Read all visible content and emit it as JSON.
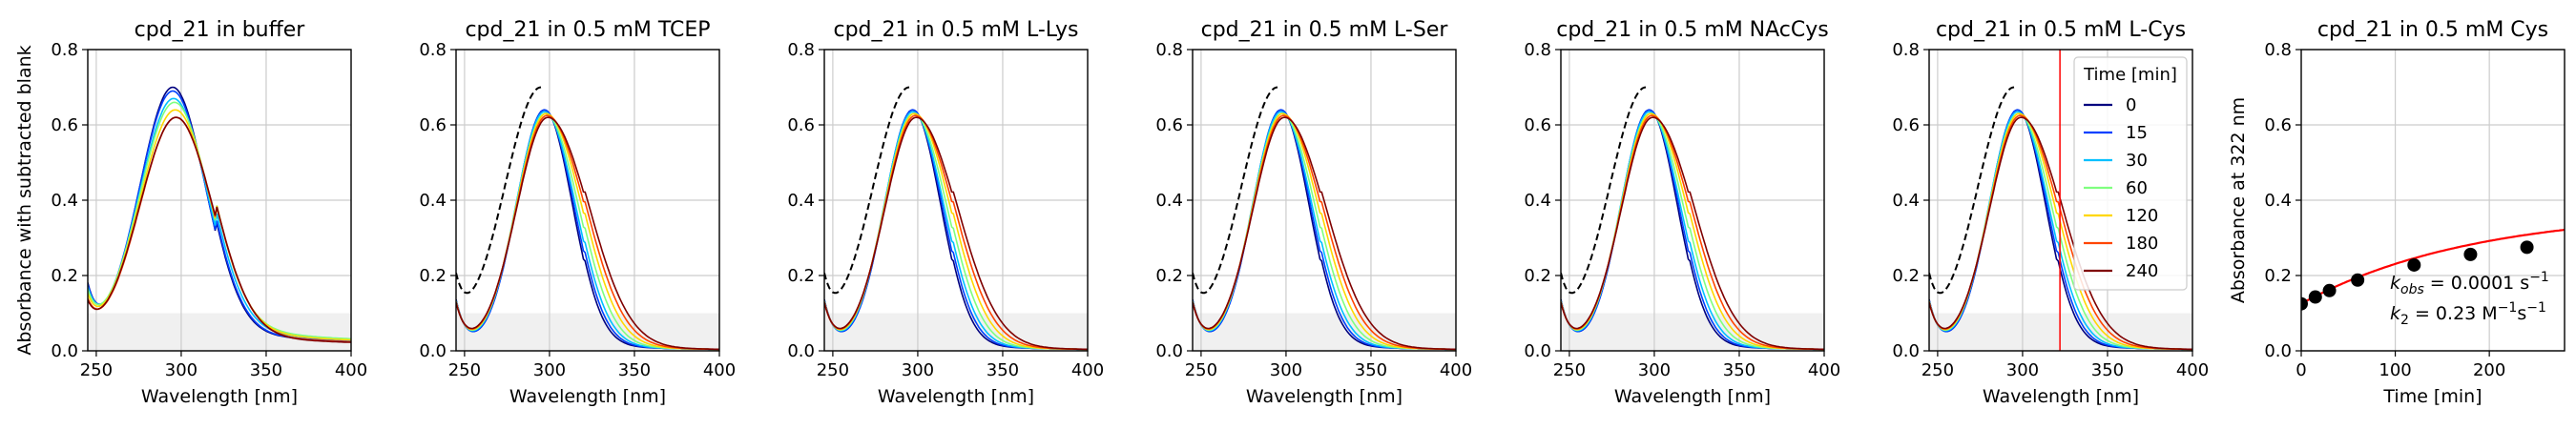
{
  "colors": {
    "series": [
      "#00007f",
      "#0040ff",
      "#00c0ff",
      "#7fff7f",
      "#ffd700",
      "#ff4500",
      "#7f0000"
    ],
    "reference": "#000000",
    "fit": "#ff0000",
    "marker": "#000000",
    "blank_region": "#f0f0f0",
    "grid": "#cccccc",
    "cursor_line": "#ff0000"
  },
  "chart_data": [
    {
      "type": "line",
      "title": "cpd_21 in buffer",
      "xlabel": "Wavelength [nm]",
      "ylabel": "Absorbance with subtracted blank",
      "xlim": [
        245,
        400
      ],
      "ylim": [
        0,
        0.8
      ],
      "xticks": [
        "250",
        "300",
        "350",
        "400"
      ],
      "yticks": [
        "0.0",
        "0.2",
        "0.4",
        "0.6",
        "0.8"
      ],
      "grid": true,
      "blank_band": [
        0,
        0.1
      ],
      "series": [
        {
          "peak": 0.7,
          "center": 295,
          "width": 19.5,
          "shift": 0,
          "min": 0.135,
          "base": 0.021,
          "tail": 0.031
        },
        {
          "peak": 0.69,
          "center": 295,
          "width": 19.8,
          "shift": 0,
          "min": 0.13,
          "base": 0.02,
          "tail": 0.034
        },
        {
          "peak": 0.67,
          "center": 295.5,
          "width": 20.2,
          "shift": 0,
          "min": 0.12,
          "base": 0.022,
          "tail": 0.04
        },
        {
          "peak": 0.66,
          "center": 296,
          "width": 20.6,
          "shift": 0,
          "min": 0.11,
          "base": 0.024,
          "tail": 0.046
        },
        {
          "peak": 0.64,
          "center": 296.5,
          "width": 21.0,
          "shift": 0,
          "min": 0.1,
          "base": 0.022,
          "tail": 0.04
        },
        {
          "peak": 0.62,
          "center": 297,
          "width": 21.4,
          "shift": 0,
          "min": 0.09,
          "base": 0.018,
          "tail": 0.034
        },
        {
          "peak": 0.62,
          "center": 297,
          "width": 21.6,
          "shift": 0,
          "min": 0.085,
          "base": 0.017,
          "tail": 0.032
        }
      ]
    },
    {
      "type": "line",
      "title": "cpd_21 in 0.5 mM TCEP",
      "xlabel": "Wavelength [nm]",
      "xlim": [
        245,
        400
      ],
      "ylim": [
        0,
        0.8
      ],
      "xticks": [
        "250",
        "300",
        "350",
        "400"
      ],
      "yticks": [
        "0.0",
        "0.2",
        "0.4",
        "0.6",
        "0.8"
      ],
      "grid": true,
      "blank_band": [
        0,
        0.1
      ],
      "reference": {
        "peak": 0.7,
        "center": 295,
        "width": 21.5,
        "min": 0.145,
        "base": 0.016,
        "tail": 0.052
      },
      "series": [
        {
          "peak": 0.64,
          "center": 297,
          "width": 16.5,
          "shift": 0,
          "min": 0.13,
          "base": 0.002,
          "tail": 0.012
        },
        {
          "peak": 0.64,
          "center": 297,
          "width": 16.5,
          "shift": 0.8,
          "min": 0.128,
          "base": 0.002,
          "tail": 0.012
        },
        {
          "peak": 0.635,
          "center": 297,
          "width": 16.8,
          "shift": 1.6,
          "min": 0.126,
          "base": 0.002,
          "tail": 0.012
        },
        {
          "peak": 0.63,
          "center": 297.5,
          "width": 17.2,
          "shift": 2.5,
          "min": 0.124,
          "base": 0.002,
          "tail": 0.012
        },
        {
          "peak": 0.63,
          "center": 298,
          "width": 17.6,
          "shift": 3.5,
          "min": 0.122,
          "base": 0.002,
          "tail": 0.012
        },
        {
          "peak": 0.625,
          "center": 298.5,
          "width": 18.0,
          "shift": 4.5,
          "min": 0.12,
          "base": 0.002,
          "tail": 0.012
        },
        {
          "peak": 0.62,
          "center": 299,
          "width": 18.4,
          "shift": 5.5,
          "min": 0.118,
          "base": 0.002,
          "tail": 0.012
        }
      ]
    },
    {
      "type": "line",
      "title": "cpd_21 in 0.5 mM L-Lys",
      "xlabel": "Wavelength [nm]",
      "xlim": [
        245,
        400
      ],
      "ylim": [
        0,
        0.8
      ],
      "xticks": [
        "250",
        "300",
        "350",
        "400"
      ],
      "yticks": [
        "0.0",
        "0.2",
        "0.4",
        "0.6",
        "0.8"
      ],
      "grid": true,
      "blank_band": [
        0,
        0.1
      ],
      "reference": {
        "peak": 0.7,
        "center": 295,
        "width": 21.5,
        "min": 0.145,
        "base": 0.016,
        "tail": 0.052
      },
      "series": [
        {
          "peak": 0.64,
          "center": 297,
          "width": 16.5,
          "shift": 0,
          "min": 0.13,
          "base": 0.002,
          "tail": 0.012
        },
        {
          "peak": 0.64,
          "center": 297,
          "width": 16.5,
          "shift": 0.8,
          "min": 0.128,
          "base": 0.002,
          "tail": 0.012
        },
        {
          "peak": 0.635,
          "center": 297,
          "width": 16.8,
          "shift": 1.6,
          "min": 0.126,
          "base": 0.002,
          "tail": 0.012
        },
        {
          "peak": 0.63,
          "center": 297.5,
          "width": 17.2,
          "shift": 2.5,
          "min": 0.124,
          "base": 0.002,
          "tail": 0.012
        },
        {
          "peak": 0.63,
          "center": 298,
          "width": 17.6,
          "shift": 3.5,
          "min": 0.122,
          "base": 0.002,
          "tail": 0.012
        },
        {
          "peak": 0.625,
          "center": 298.5,
          "width": 18.0,
          "shift": 4.5,
          "min": 0.12,
          "base": 0.002,
          "tail": 0.012
        },
        {
          "peak": 0.62,
          "center": 299,
          "width": 18.4,
          "shift": 5.5,
          "min": 0.118,
          "base": 0.002,
          "tail": 0.012
        }
      ]
    },
    {
      "type": "line",
      "title": "cpd_21 in 0.5 mM L-Ser",
      "xlabel": "Wavelength [nm]",
      "xlim": [
        245,
        400
      ],
      "ylim": [
        0,
        0.8
      ],
      "xticks": [
        "250",
        "300",
        "350",
        "400"
      ],
      "yticks": [
        "0.0",
        "0.2",
        "0.4",
        "0.6",
        "0.8"
      ],
      "grid": true,
      "blank_band": [
        0,
        0.1
      ],
      "reference": {
        "peak": 0.7,
        "center": 295,
        "width": 21.5,
        "min": 0.145,
        "base": 0.016,
        "tail": 0.052
      },
      "series": [
        {
          "peak": 0.64,
          "center": 297,
          "width": 16.5,
          "shift": 0,
          "min": 0.13,
          "base": 0.002,
          "tail": 0.012
        },
        {
          "peak": 0.64,
          "center": 297,
          "width": 16.5,
          "shift": 0.8,
          "min": 0.128,
          "base": 0.002,
          "tail": 0.012
        },
        {
          "peak": 0.635,
          "center": 297,
          "width": 16.8,
          "shift": 1.6,
          "min": 0.126,
          "base": 0.002,
          "tail": 0.012
        },
        {
          "peak": 0.63,
          "center": 297.5,
          "width": 17.2,
          "shift": 2.5,
          "min": 0.124,
          "base": 0.002,
          "tail": 0.012
        },
        {
          "peak": 0.63,
          "center": 298,
          "width": 17.6,
          "shift": 3.5,
          "min": 0.122,
          "base": 0.002,
          "tail": 0.012
        },
        {
          "peak": 0.625,
          "center": 298.5,
          "width": 18.0,
          "shift": 4.5,
          "min": 0.12,
          "base": 0.002,
          "tail": 0.012
        },
        {
          "peak": 0.62,
          "center": 299,
          "width": 18.4,
          "shift": 5.5,
          "min": 0.118,
          "base": 0.002,
          "tail": 0.012
        }
      ]
    },
    {
      "type": "line",
      "title": "cpd_21 in 0.5 mM NAcCys",
      "xlabel": "Wavelength [nm]",
      "xlim": [
        245,
        400
      ],
      "ylim": [
        0,
        0.8
      ],
      "xticks": [
        "250",
        "300",
        "350",
        "400"
      ],
      "yticks": [
        "0.0",
        "0.2",
        "0.4",
        "0.6",
        "0.8"
      ],
      "grid": true,
      "blank_band": [
        0,
        0.1
      ],
      "reference": {
        "peak": 0.7,
        "center": 295,
        "width": 21.5,
        "min": 0.145,
        "base": 0.016,
        "tail": 0.052
      },
      "series": [
        {
          "peak": 0.64,
          "center": 297,
          "width": 16.5,
          "shift": 0,
          "min": 0.13,
          "base": 0.002,
          "tail": 0.012
        },
        {
          "peak": 0.64,
          "center": 297,
          "width": 16.5,
          "shift": 0.8,
          "min": 0.128,
          "base": 0.002,
          "tail": 0.012
        },
        {
          "peak": 0.635,
          "center": 297,
          "width": 16.8,
          "shift": 1.6,
          "min": 0.126,
          "base": 0.002,
          "tail": 0.012
        },
        {
          "peak": 0.63,
          "center": 297.5,
          "width": 17.2,
          "shift": 2.5,
          "min": 0.124,
          "base": 0.002,
          "tail": 0.012
        },
        {
          "peak": 0.63,
          "center": 298,
          "width": 17.6,
          "shift": 3.5,
          "min": 0.122,
          "base": 0.002,
          "tail": 0.012
        },
        {
          "peak": 0.625,
          "center": 298.5,
          "width": 18.0,
          "shift": 4.5,
          "min": 0.12,
          "base": 0.002,
          "tail": 0.012
        },
        {
          "peak": 0.62,
          "center": 299,
          "width": 18.4,
          "shift": 5.5,
          "min": 0.118,
          "base": 0.002,
          "tail": 0.012
        }
      ]
    },
    {
      "type": "line",
      "title": "cpd_21 in 0.5 mM L-Cys",
      "xlabel": "Wavelength [nm]",
      "xlim": [
        245,
        400
      ],
      "ylim": [
        0,
        0.8
      ],
      "xticks": [
        "250",
        "300",
        "350",
        "400"
      ],
      "yticks": [
        "0.0",
        "0.2",
        "0.4",
        "0.6",
        "0.8"
      ],
      "grid": true,
      "blank_band": [
        0,
        0.1
      ],
      "marker_wavelength": 322,
      "reference": {
        "peak": 0.7,
        "center": 295,
        "width": 21.5,
        "min": 0.145,
        "base": 0.016,
        "tail": 0.052
      },
      "series": [
        {
          "peak": 0.64,
          "center": 297,
          "width": 16.5,
          "shift": 0,
          "min": 0.13,
          "base": 0.002,
          "tail": 0.012
        },
        {
          "peak": 0.64,
          "center": 297,
          "width": 16.5,
          "shift": 0.8,
          "min": 0.128,
          "base": 0.002,
          "tail": 0.012
        },
        {
          "peak": 0.635,
          "center": 297,
          "width": 16.8,
          "shift": 1.6,
          "min": 0.126,
          "base": 0.002,
          "tail": 0.012
        },
        {
          "peak": 0.63,
          "center": 297.5,
          "width": 17.2,
          "shift": 2.5,
          "min": 0.124,
          "base": 0.002,
          "tail": 0.012
        },
        {
          "peak": 0.63,
          "center": 298,
          "width": 17.6,
          "shift": 3.5,
          "min": 0.122,
          "base": 0.002,
          "tail": 0.012
        },
        {
          "peak": 0.625,
          "center": 298.5,
          "width": 18.0,
          "shift": 4.5,
          "min": 0.12,
          "base": 0.002,
          "tail": 0.012
        },
        {
          "peak": 0.62,
          "center": 299,
          "width": 18.4,
          "shift": 5.5,
          "min": 0.118,
          "base": 0.002,
          "tail": 0.012
        }
      ],
      "legend": {
        "title": "Time [min]",
        "entries": [
          "0",
          "15",
          "30",
          "60",
          "120",
          "180",
          "240"
        ],
        "position": "top-right"
      }
    },
    {
      "type": "scatter",
      "title": "cpd_21 in 0.5 mM Cys",
      "xlabel": "Time [min]",
      "ylabel": "Absorbance at 322 nm",
      "xlim": [
        0,
        280
      ],
      "ylim": [
        0,
        0.8
      ],
      "xticks": [
        "0",
        "100",
        "200"
      ],
      "yticks": [
        "0.0",
        "0.2",
        "0.4",
        "0.6",
        "0.8"
      ],
      "grid": true,
      "points": [
        {
          "x": 0,
          "y": 0.125
        },
        {
          "x": 15,
          "y": 0.143
        },
        {
          "x": 30,
          "y": 0.16
        },
        {
          "x": 60,
          "y": 0.188
        },
        {
          "x": 120,
          "y": 0.228
        },
        {
          "x": 180,
          "y": 0.256
        },
        {
          "x": 240,
          "y": 0.275
        }
      ],
      "fit_curve": {
        "type": "exponential",
        "y0": 0.125,
        "amplitude": 0.25,
        "rate_per_min": 0.0055
      },
      "annotations": {
        "kobs_symbol": "k",
        "kobs_sub": "obs",
        "kobs_value": " = 0.0001 s",
        "kobs_sup": "−1",
        "k2_symbol": "k",
        "k2_sub": "2",
        "k2_value": " = 0.23 M",
        "k2_sup1": "−1",
        "k2_unit": "s",
        "k2_sup2": "−1"
      }
    }
  ]
}
